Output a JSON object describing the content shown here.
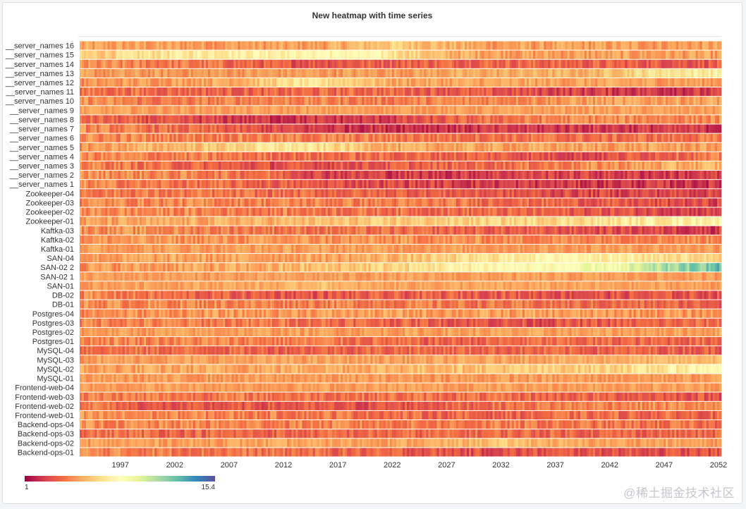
{
  "panel": {
    "title": "New heatmap with time series"
  },
  "watermark": "@稀土掘金技术社区",
  "colors": {
    "scale": [
      "#5e4fa2",
      "#3288bd",
      "#66c2a5",
      "#abdda4",
      "#e6f598",
      "#ffffbf",
      "#fee08b",
      "#fdae61",
      "#f46d43",
      "#d53e4f",
      "#9e0142"
    ]
  },
  "chart_data": {
    "type": "heatmap",
    "title": "New heatmap with time series",
    "x_range": [
      1993,
      2052
    ],
    "x_ticks": [
      "1997",
      "2002",
      "2007",
      "2012",
      "2017",
      "2022",
      "2027",
      "2032",
      "2037",
      "2042",
      "2047",
      "2052"
    ],
    "value_range": [
      1,
      15.4
    ],
    "legend": {
      "min": "1",
      "max": "15.4",
      "placement": "bottom-left"
    },
    "rows": [
      {
        "name": "__server_names 16",
        "trend": [
          [
            1993,
            5.0
          ],
          [
            2015,
            5.0
          ],
          [
            2022,
            6.3
          ],
          [
            2030,
            5.0
          ],
          [
            2052,
            5.0
          ]
        ],
        "noise": 0.9
      },
      {
        "name": "__server_names 15",
        "trend": [
          [
            1993,
            6.0
          ],
          [
            2000,
            7.0
          ],
          [
            2006,
            7.5
          ],
          [
            2015,
            8.0
          ],
          [
            2020,
            7.8
          ],
          [
            2026,
            5.6
          ],
          [
            2035,
            5.0
          ],
          [
            2045,
            5.0
          ],
          [
            2052,
            5.0
          ]
        ],
        "noise": 0.9
      },
      {
        "name": "__server_names 14",
        "trend": [
          [
            1993,
            4.5
          ],
          [
            2005,
            4.0
          ],
          [
            2012,
            3.2
          ],
          [
            2020,
            3.5
          ],
          [
            2030,
            3.8
          ],
          [
            2040,
            3.5
          ],
          [
            2052,
            3.3
          ]
        ],
        "noise": 1.0
      },
      {
        "name": "__server_names 13",
        "trend": [
          [
            1993,
            4.8
          ],
          [
            2020,
            5.0
          ],
          [
            2030,
            5.3
          ],
          [
            2040,
            5.5
          ],
          [
            2046,
            7.0
          ],
          [
            2052,
            7.5
          ]
        ],
        "noise": 0.8
      },
      {
        "name": "__server_names 12",
        "trend": [
          [
            1993,
            4.6
          ],
          [
            2008,
            5.5
          ],
          [
            2013,
            7.0
          ],
          [
            2018,
            6.5
          ],
          [
            2022,
            5.2
          ],
          [
            2052,
            5.0
          ]
        ],
        "noise": 0.8
      },
      {
        "name": "__server_names 11",
        "trend": [
          [
            1993,
            4.0
          ],
          [
            2010,
            3.5
          ],
          [
            2020,
            3.8
          ],
          [
            2030,
            3.2
          ],
          [
            2040,
            2.6
          ],
          [
            2052,
            2.4
          ]
        ],
        "noise": 1.0
      },
      {
        "name": "__server_names 10",
        "trend": [
          [
            1993,
            4.8
          ],
          [
            2000,
            4.0
          ],
          [
            2010,
            4.5
          ],
          [
            2020,
            4.2
          ],
          [
            2030,
            4.5
          ],
          [
            2040,
            5.0
          ],
          [
            2052,
            5.2
          ]
        ],
        "noise": 0.9
      },
      {
        "name": "__server_names 9",
        "trend": [
          [
            1993,
            5.0
          ],
          [
            2052,
            5.0
          ]
        ],
        "noise": 0.6
      },
      {
        "name": "__server_names 8",
        "trend": [
          [
            1993,
            3.8
          ],
          [
            2002,
            2.8
          ],
          [
            2010,
            2.3
          ],
          [
            2020,
            2.4
          ],
          [
            2025,
            3.0
          ],
          [
            2030,
            3.8
          ],
          [
            2040,
            4.6
          ],
          [
            2052,
            4.5
          ]
        ],
        "noise": 1.0
      },
      {
        "name": "__server_names 7",
        "trend": [
          [
            1993,
            4.5
          ],
          [
            2005,
            3.5
          ],
          [
            2015,
            2.4
          ],
          [
            2030,
            2.3
          ],
          [
            2040,
            2.5
          ],
          [
            2052,
            2.3
          ]
        ],
        "noise": 1.0
      },
      {
        "name": "__server_names 6",
        "trend": [
          [
            1993,
            4.5
          ],
          [
            2020,
            4.2
          ],
          [
            2030,
            4.0
          ],
          [
            2040,
            3.8
          ],
          [
            2052,
            4.0
          ]
        ],
        "noise": 1.0
      },
      {
        "name": "__server_names 5",
        "trend": [
          [
            1993,
            4.8
          ],
          [
            2005,
            6.0
          ],
          [
            2012,
            7.2
          ],
          [
            2017,
            6.5
          ],
          [
            2022,
            5.2
          ],
          [
            2052,
            5.0
          ]
        ],
        "noise": 0.9
      },
      {
        "name": "__server_names 4",
        "trend": [
          [
            1993,
            4.5
          ],
          [
            2015,
            3.8
          ],
          [
            2030,
            3.6
          ],
          [
            2040,
            2.8
          ],
          [
            2047,
            3.8
          ],
          [
            2052,
            4.0
          ]
        ],
        "noise": 1.0
      },
      {
        "name": "__server_names 3",
        "trend": [
          [
            1993,
            4.5
          ],
          [
            2010,
            3.0
          ],
          [
            2020,
            3.2
          ],
          [
            2030,
            3.8
          ],
          [
            2040,
            4.5
          ],
          [
            2048,
            5.3
          ],
          [
            2052,
            5.5
          ]
        ],
        "noise": 1.0
      },
      {
        "name": "__server_names 2",
        "trend": [
          [
            1993,
            4.8
          ],
          [
            2010,
            4.0
          ],
          [
            2015,
            2.8
          ],
          [
            2025,
            2.4
          ],
          [
            2035,
            2.8
          ],
          [
            2045,
            2.5
          ],
          [
            2052,
            2.4
          ]
        ],
        "noise": 1.0
      },
      {
        "name": "__server_names 1",
        "trend": [
          [
            1993,
            4.5
          ],
          [
            2005,
            3.8
          ],
          [
            2015,
            3.2
          ],
          [
            2030,
            2.5
          ],
          [
            2040,
            2.4
          ],
          [
            2052,
            2.3
          ]
        ],
        "noise": 1.0
      },
      {
        "name": "Zookeeper-04",
        "trend": [
          [
            1993,
            4.3
          ],
          [
            2010,
            3.8
          ],
          [
            2025,
            3.5
          ],
          [
            2040,
            2.8
          ],
          [
            2052,
            2.8
          ]
        ],
        "noise": 1.0
      },
      {
        "name": "Zookeeper-03",
        "trend": [
          [
            1993,
            4.6
          ],
          [
            2020,
            4.3
          ],
          [
            2035,
            3.8
          ],
          [
            2045,
            3.0
          ],
          [
            2052,
            2.8
          ]
        ],
        "noise": 1.0
      },
      {
        "name": "Zookeeper-02",
        "trend": [
          [
            1993,
            4.6
          ],
          [
            2020,
            4.0
          ],
          [
            2035,
            3.5
          ],
          [
            2045,
            3.0
          ],
          [
            2052,
            2.6
          ]
        ],
        "noise": 1.0
      },
      {
        "name": "Zookeeper-01",
        "trend": [
          [
            1993,
            4.9
          ],
          [
            2010,
            5.5
          ],
          [
            2025,
            6.2
          ],
          [
            2040,
            6.8
          ],
          [
            2052,
            7.8
          ]
        ],
        "noise": 0.9
      },
      {
        "name": "Kaftka-03",
        "trend": [
          [
            1993,
            4.8
          ],
          [
            2015,
            4.0
          ],
          [
            2030,
            3.5
          ],
          [
            2045,
            2.8
          ],
          [
            2052,
            2.5
          ]
        ],
        "noise": 1.0
      },
      {
        "name": "Kaftka-02",
        "trend": [
          [
            1993,
            4.8
          ],
          [
            2020,
            4.7
          ],
          [
            2035,
            4.5
          ],
          [
            2052,
            4.6
          ]
        ],
        "noise": 0.9
      },
      {
        "name": "Kaftka-01",
        "trend": [
          [
            1993,
            5.0
          ],
          [
            2052,
            5.0
          ]
        ],
        "noise": 0.7
      },
      {
        "name": "SAN-04",
        "trend": [
          [
            1993,
            5.0
          ],
          [
            2018,
            5.2
          ],
          [
            2025,
            6.0
          ],
          [
            2032,
            7.2
          ],
          [
            2038,
            8.0
          ],
          [
            2045,
            7.0
          ],
          [
            2052,
            6.5
          ]
        ],
        "noise": 0.9
      },
      {
        "name": "SAN-02 2",
        "trend": [
          [
            1993,
            4.8
          ],
          [
            2010,
            5.3
          ],
          [
            2022,
            6.5
          ],
          [
            2030,
            7.8
          ],
          [
            2038,
            8.5
          ],
          [
            2043,
            9.0
          ],
          [
            2047,
            11.0
          ],
          [
            2052,
            12.5
          ]
        ],
        "noise": 1.0
      },
      {
        "name": "SAN-02 1",
        "trend": [
          [
            1993,
            5.0
          ],
          [
            2052,
            4.9
          ]
        ],
        "noise": 0.6
      },
      {
        "name": "SAN-01",
        "trend": [
          [
            1993,
            5.0
          ],
          [
            2012,
            5.3
          ],
          [
            2015,
            6.0
          ],
          [
            2018,
            5.2
          ],
          [
            2052,
            5.0
          ]
        ],
        "noise": 0.6
      },
      {
        "name": "DB-02",
        "trend": [
          [
            1993,
            4.5
          ],
          [
            2005,
            3.5
          ],
          [
            2015,
            3.2
          ],
          [
            2030,
            3.5
          ],
          [
            2040,
            3.0
          ],
          [
            2052,
            3.2
          ]
        ],
        "noise": 1.0
      },
      {
        "name": "DB-01",
        "trend": [
          [
            1993,
            4.6
          ],
          [
            2020,
            4.3
          ],
          [
            2040,
            3.8
          ],
          [
            2052,
            3.5
          ]
        ],
        "noise": 1.0
      },
      {
        "name": "Postgres-04",
        "trend": [
          [
            1993,
            4.6
          ],
          [
            2015,
            5.0
          ],
          [
            2030,
            5.0
          ],
          [
            2052,
            4.8
          ]
        ],
        "noise": 0.9
      },
      {
        "name": "Postgres-03",
        "trend": [
          [
            1993,
            4.5
          ],
          [
            2015,
            4.0
          ],
          [
            2025,
            3.5
          ],
          [
            2035,
            3.0
          ],
          [
            2045,
            3.5
          ],
          [
            2052,
            3.8
          ]
        ],
        "noise": 1.0
      },
      {
        "name": "Postgres-02",
        "trend": [
          [
            1993,
            5.0
          ],
          [
            2052,
            5.1
          ]
        ],
        "noise": 0.7
      },
      {
        "name": "Postgres-01",
        "trend": [
          [
            1993,
            4.6
          ],
          [
            2015,
            4.2
          ],
          [
            2025,
            3.5
          ],
          [
            2035,
            3.8
          ],
          [
            2045,
            3.6
          ],
          [
            2052,
            3.8
          ]
        ],
        "noise": 1.0
      },
      {
        "name": "MySQL-04",
        "trend": [
          [
            1993,
            4.0
          ],
          [
            2010,
            3.6
          ],
          [
            2025,
            3.8
          ],
          [
            2040,
            3.6
          ],
          [
            2052,
            3.5
          ]
        ],
        "noise": 1.0
      },
      {
        "name": "MySQL-03",
        "trend": [
          [
            1993,
            5.0
          ],
          [
            2030,
            5.1
          ],
          [
            2045,
            5.5
          ],
          [
            2052,
            5.8
          ]
        ],
        "noise": 0.7
      },
      {
        "name": "MySQL-02",
        "trend": [
          [
            1993,
            5.0
          ],
          [
            2020,
            5.5
          ],
          [
            2030,
            6.0
          ],
          [
            2040,
            6.3
          ],
          [
            2047,
            7.0
          ],
          [
            2052,
            8.5
          ]
        ],
        "noise": 0.9
      },
      {
        "name": "MySQL-01",
        "trend": [
          [
            1993,
            4.9
          ],
          [
            2052,
            4.9
          ]
        ],
        "noise": 0.7
      },
      {
        "name": "Frontend-web-04",
        "trend": [
          [
            1993,
            5.0
          ],
          [
            2052,
            5.0
          ]
        ],
        "noise": 0.6
      },
      {
        "name": "Frontend-web-03",
        "trend": [
          [
            1993,
            4.3
          ],
          [
            2020,
            4.0
          ],
          [
            2040,
            3.6
          ],
          [
            2052,
            3.2
          ]
        ],
        "noise": 1.0
      },
      {
        "name": "Frontend-web-02",
        "trend": [
          [
            1993,
            4.5
          ],
          [
            2000,
            3.0
          ],
          [
            2010,
            3.2
          ],
          [
            2020,
            3.0
          ],
          [
            2030,
            3.8
          ],
          [
            2040,
            4.5
          ],
          [
            2052,
            4.5
          ]
        ],
        "noise": 1.0
      },
      {
        "name": "Frontend-web-01",
        "trend": [
          [
            1993,
            4.6
          ],
          [
            2015,
            4.2
          ],
          [
            2030,
            3.5
          ],
          [
            2040,
            3.8
          ],
          [
            2052,
            3.6
          ]
        ],
        "noise": 1.0
      },
      {
        "name": "Backend-ops-04",
        "trend": [
          [
            1993,
            4.5
          ],
          [
            2020,
            4.3
          ],
          [
            2040,
            4.0
          ],
          [
            2052,
            3.8
          ]
        ],
        "noise": 1.0
      },
      {
        "name": "Backend-ops-03",
        "trend": [
          [
            1993,
            4.0
          ],
          [
            2010,
            3.6
          ],
          [
            2030,
            3.8
          ],
          [
            2052,
            3.6
          ]
        ],
        "noise": 1.0
      },
      {
        "name": "Backend-ops-02",
        "trend": [
          [
            1993,
            5.0
          ],
          [
            2025,
            5.2
          ],
          [
            2032,
            6.0
          ],
          [
            2038,
            5.2
          ],
          [
            2052,
            5.0
          ]
        ],
        "noise": 0.7
      },
      {
        "name": "Backend-ops-01",
        "trend": [
          [
            1993,
            4.5
          ],
          [
            2015,
            3.8
          ],
          [
            2030,
            3.0
          ],
          [
            2040,
            3.2
          ],
          [
            2052,
            3.0
          ]
        ],
        "noise": 1.0
      }
    ]
  }
}
